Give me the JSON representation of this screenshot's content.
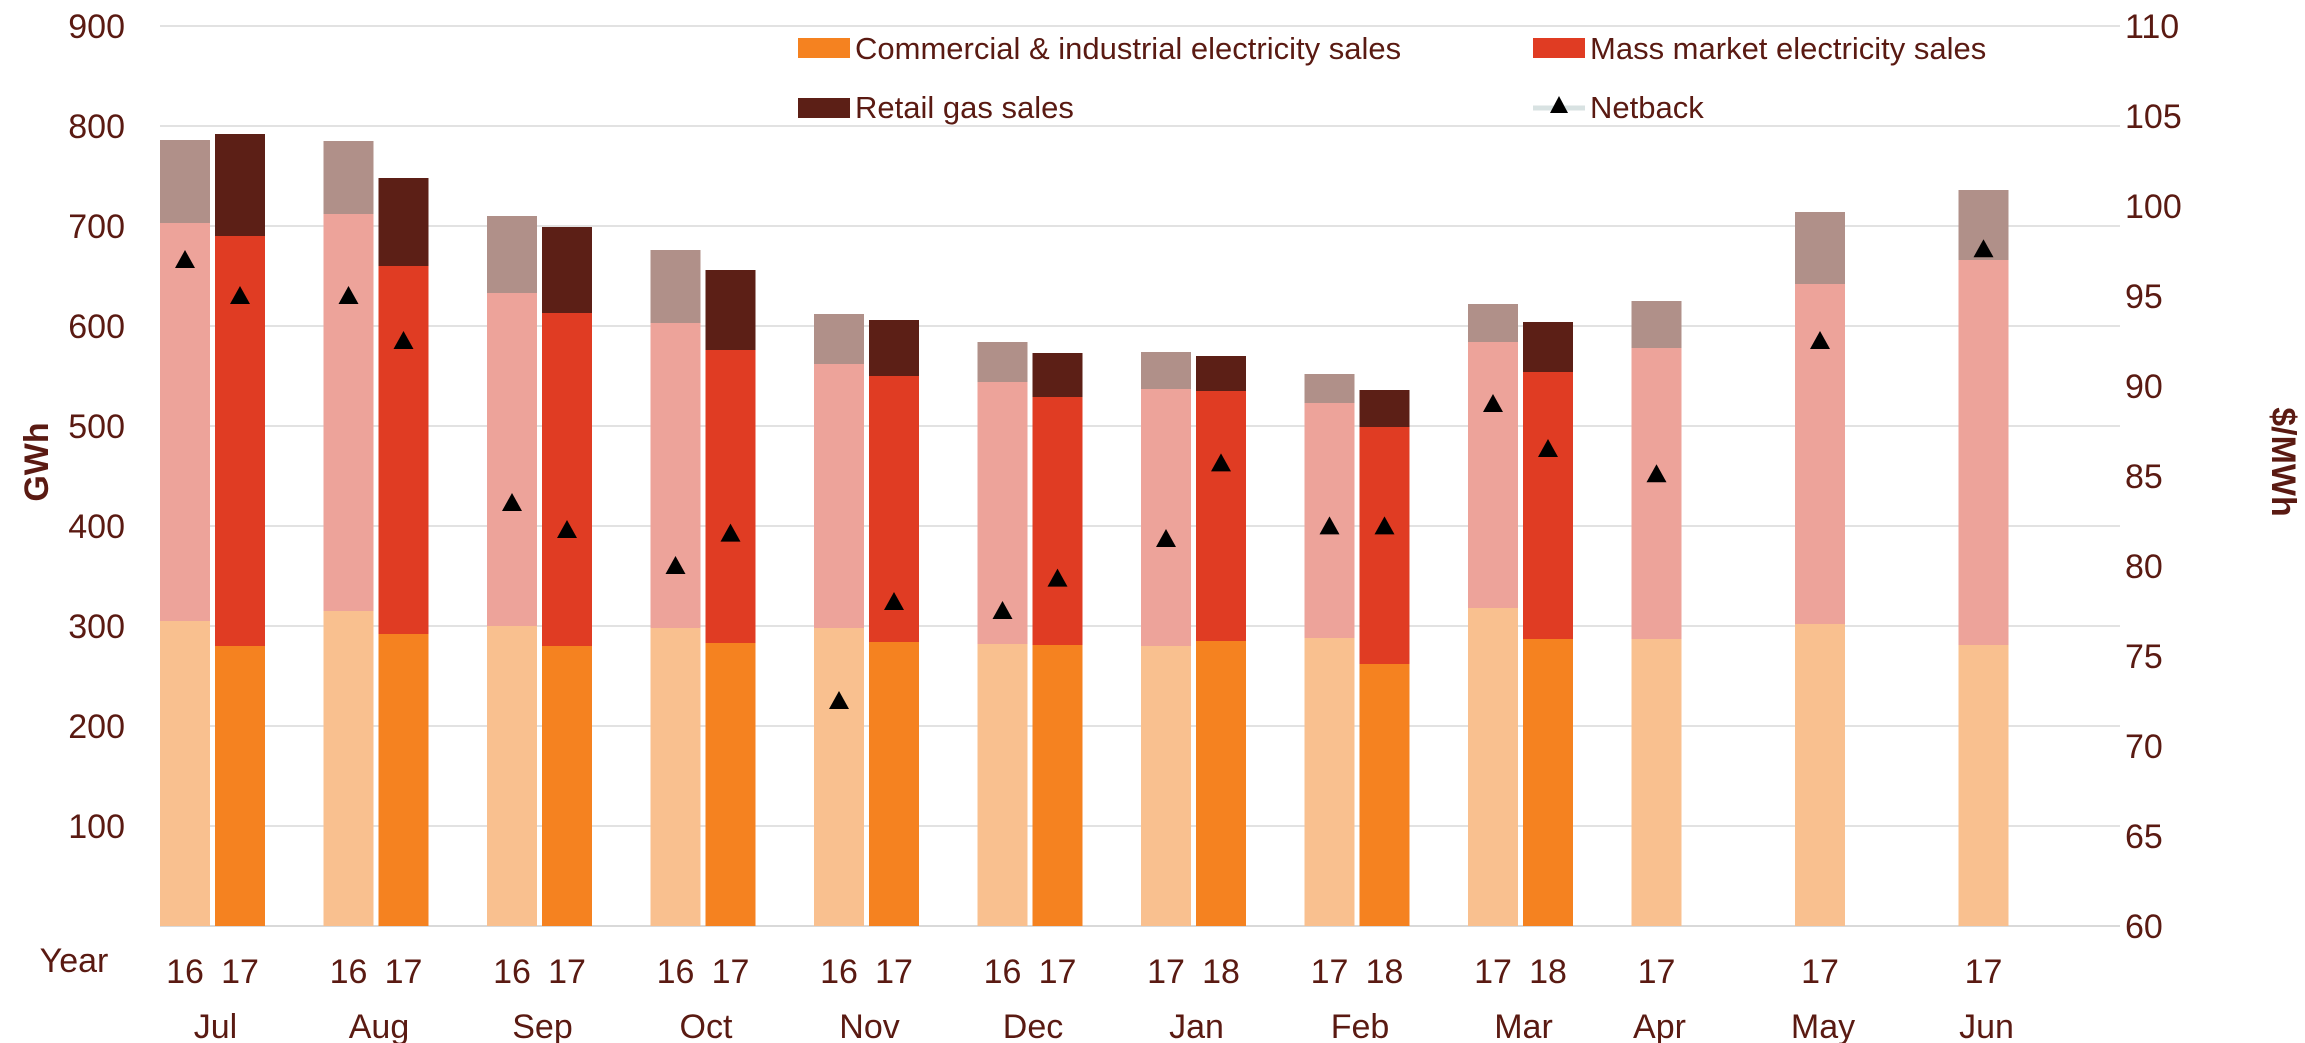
{
  "chart_data": {
    "type": "bar",
    "stacked": true,
    "xlabel": "Year",
    "ylabel": "GWh",
    "y2label": "$/MWh",
    "ylim": [
      0,
      900
    ],
    "y2lim": [
      60,
      110
    ],
    "yticks": [
      "100",
      "200",
      "300",
      "400",
      "500",
      "600",
      "700",
      "800",
      "900"
    ],
    "y2ticks": [
      "60",
      "65",
      "70",
      "75",
      "80",
      "85",
      "90",
      "95",
      "100",
      "105",
      "110"
    ],
    "grid": true,
    "legend_position": "top",
    "months": [
      "Jul",
      "Aug",
      "Sep",
      "Oct",
      "Nov",
      "Dec",
      "Jan",
      "Feb",
      "Mar",
      "Apr",
      "May",
      "Jun"
    ],
    "bars": [
      {
        "month": "Jul",
        "year": "16",
        "prior": true,
        "ci": 305,
        "mm": 398,
        "gas": 83,
        "netback": 97
      },
      {
        "month": "Jul",
        "year": "17",
        "prior": false,
        "ci": 280,
        "mm": 410,
        "gas": 102,
        "netback": 95
      },
      {
        "month": "Aug",
        "year": "16",
        "prior": true,
        "ci": 315,
        "mm": 397,
        "gas": 73,
        "netback": 95
      },
      {
        "month": "Aug",
        "year": "17",
        "prior": false,
        "ci": 292,
        "mm": 368,
        "gas": 88,
        "netback": 92.5
      },
      {
        "month": "Sep",
        "year": "16",
        "prior": true,
        "ci": 300,
        "mm": 333,
        "gas": 77,
        "netback": 83.5
      },
      {
        "month": "Sep",
        "year": "17",
        "prior": false,
        "ci": 280,
        "mm": 333,
        "gas": 86,
        "netback": 82
      },
      {
        "month": "Oct",
        "year": "16",
        "prior": true,
        "ci": 298,
        "mm": 305,
        "gas": 73,
        "netback": 80
      },
      {
        "month": "Oct",
        "year": "17",
        "prior": false,
        "ci": 283,
        "mm": 293,
        "gas": 80,
        "netback": 81.8
      },
      {
        "month": "Nov",
        "year": "16",
        "prior": true,
        "ci": 298,
        "mm": 264,
        "gas": 50,
        "netback": 72.5
      },
      {
        "month": "Nov",
        "year": "17",
        "prior": false,
        "ci": 284,
        "mm": 266,
        "gas": 56,
        "netback": 78
      },
      {
        "month": "Dec",
        "year": "16",
        "prior": true,
        "ci": 282,
        "mm": 262,
        "gas": 40,
        "netback": 77.5
      },
      {
        "month": "Dec",
        "year": "17",
        "prior": false,
        "ci": 281,
        "mm": 248,
        "gas": 44,
        "netback": 79.3
      },
      {
        "month": "Jan",
        "year": "17",
        "prior": true,
        "ci": 280,
        "mm": 257,
        "gas": 37,
        "netback": 81.5
      },
      {
        "month": "Jan",
        "year": "18",
        "prior": false,
        "ci": 285,
        "mm": 250,
        "gas": 35,
        "netback": 85.7
      },
      {
        "month": "Feb",
        "year": "17",
        "prior": true,
        "ci": 288,
        "mm": 235,
        "gas": 29,
        "netback": 82.2
      },
      {
        "month": "Feb",
        "year": "18",
        "prior": false,
        "ci": 262,
        "mm": 237,
        "gas": 37,
        "netback": 82.2
      },
      {
        "month": "Mar",
        "year": "17",
        "prior": true,
        "ci": 318,
        "mm": 266,
        "gas": 38,
        "netback": 89
      },
      {
        "month": "Mar",
        "year": "18",
        "prior": false,
        "ci": 287,
        "mm": 267,
        "gas": 50,
        "netback": 86.5
      },
      {
        "month": "Apr",
        "year": "17",
        "prior": true,
        "ci": 287,
        "mm": 291,
        "gas": 47,
        "netback": 85.1
      },
      {
        "month": "May",
        "year": "17",
        "prior": true,
        "ci": 302,
        "mm": 340,
        "gas": 72,
        "netback": 92.5
      },
      {
        "month": "Jun",
        "year": "17",
        "prior": true,
        "ci": 281,
        "mm": 385,
        "gas": 70,
        "netback": 97.6
      }
    ],
    "series": [
      {
        "name": "Commercial & industrial electricity sales",
        "key": "ci",
        "color": "#f58220",
        "color_prior": "#f9c08f"
      },
      {
        "name": "Mass market electricity sales",
        "key": "mm",
        "color": "#e03c23",
        "color_prior": "#eda39a"
      },
      {
        "name": "Retail gas sales",
        "key": "gas",
        "color": "#5c1f16",
        "color_prior": "#b09089"
      },
      {
        "name": "Netback",
        "key": "netback",
        "color": "#000000",
        "marker": "triangle",
        "axis": "right"
      }
    ]
  }
}
